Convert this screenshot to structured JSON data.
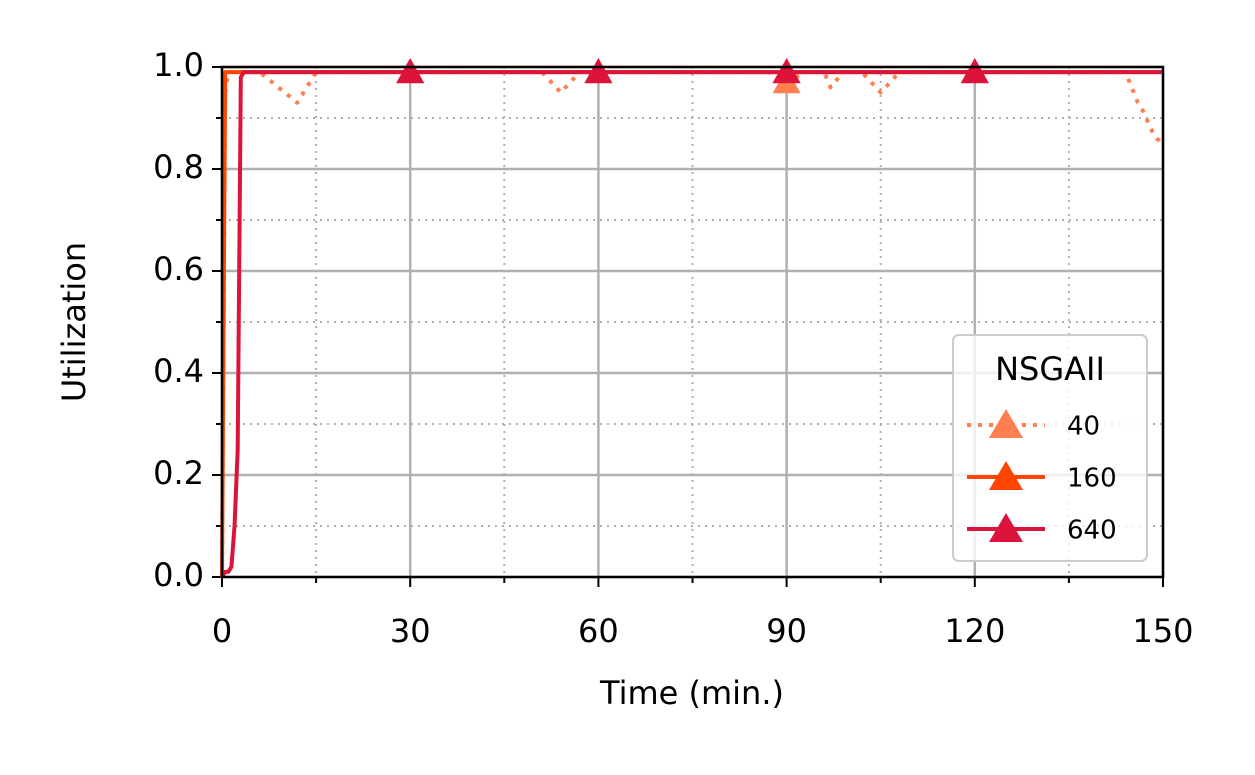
{
  "chart_data": {
    "type": "line",
    "xlabel": "Time (min.)",
    "ylabel": "Utilization",
    "legend_title": "NSGAII",
    "legend": "lower right",
    "xlim": [
      0,
      150
    ],
    "xticks": [
      0,
      30,
      60,
      90,
      120,
      150
    ],
    "xminorticks": [
      15,
      45,
      75,
      105,
      135
    ],
    "ylim": [
      0,
      1
    ],
    "yticks": [
      {
        "value": 0,
        "label": "0.0"
      },
      0.2,
      0.4,
      0.6,
      0.8,
      {
        "value": 1,
        "label": "1.0"
      }
    ],
    "yminorticks": [
      0.1,
      0.3,
      0.5,
      0.7,
      0.9
    ],
    "grid": true,
    "markers_x": [
      30,
      60,
      90,
      120
    ],
    "x": [
      0,
      0.5,
      1,
      1.5,
      2,
      2.5,
      3,
      3.5,
      4,
      6,
      9,
      12,
      13,
      15,
      18,
      21,
      24,
      27,
      30,
      33,
      36,
      39,
      42,
      45,
      48,
      51,
      54,
      57,
      60,
      63,
      66,
      69,
      72,
      75,
      78,
      81,
      84,
      87,
      90,
      93,
      96,
      97,
      99,
      102,
      105,
      108,
      111,
      114,
      117,
      120,
      123,
      126,
      129,
      132,
      135,
      138,
      141,
      144,
      145,
      146,
      147,
      148,
      149,
      150
    ],
    "series": [
      {
        "name": "40",
        "color": "#ff7f50",
        "linestyle": "dotted",
        "values": [
          0,
          0.95,
          0.99,
          0.99,
          0.99,
          0.99,
          0.99,
          0.99,
          0.99,
          0.99,
          0.96,
          0.93,
          0.95,
          0.99,
          0.99,
          0.99,
          0.99,
          0.99,
          0.99,
          0.99,
          0.99,
          0.99,
          0.99,
          0.99,
          0.99,
          0.99,
          0.95,
          0.99,
          0.99,
          0.99,
          0.99,
          0.99,
          0.99,
          0.99,
          0.99,
          0.99,
          0.99,
          0.99,
          0.97,
          0.99,
          0.99,
          0.96,
          0.99,
          0.99,
          0.95,
          0.99,
          0.99,
          0.99,
          0.99,
          0.99,
          0.99,
          0.99,
          0.99,
          0.99,
          0.99,
          0.99,
          0.99,
          0.99,
          0.96,
          0.93,
          0.91,
          0.88,
          0.86,
          0.85
        ]
      },
      {
        "name": "160",
        "color": "#ff4500",
        "linestyle": "solid",
        "values": [
          0,
          0.99,
          0.99,
          0.99,
          0.99,
          0.99,
          0.99,
          0.99,
          0.99,
          0.99,
          0.99,
          0.99,
          0.99,
          0.99,
          0.99,
          0.99,
          0.99,
          0.99,
          0.99,
          0.99,
          0.99,
          0.99,
          0.99,
          0.99,
          0.99,
          0.99,
          0.99,
          0.99,
          0.99,
          0.99,
          0.99,
          0.99,
          0.99,
          0.99,
          0.99,
          0.99,
          0.99,
          0.99,
          0.99,
          0.99,
          0.99,
          0.99,
          0.99,
          0.99,
          0.99,
          0.99,
          0.99,
          0.99,
          0.99,
          0.99,
          0.99,
          0.99,
          0.99,
          0.99,
          0.99,
          0.99,
          0.99,
          0.99,
          0.99,
          0.99,
          0.99,
          0.99,
          0.99,
          0.99
        ]
      },
      {
        "name": "640",
        "color": "#dc143c",
        "linestyle": "solid",
        "values": [
          0,
          0.01,
          0.01,
          0.02,
          0.1,
          0.25,
          0.98,
          0.99,
          0.99,
          0.99,
          0.99,
          0.99,
          0.99,
          0.99,
          0.99,
          0.99,
          0.99,
          0.99,
          0.99,
          0.99,
          0.99,
          0.99,
          0.99,
          0.99,
          0.99,
          0.99,
          0.99,
          0.99,
          0.99,
          0.99,
          0.99,
          0.99,
          0.99,
          0.99,
          0.99,
          0.99,
          0.99,
          0.99,
          0.99,
          0.99,
          0.99,
          0.99,
          0.99,
          0.99,
          0.99,
          0.99,
          0.99,
          0.99,
          0.99,
          0.99,
          0.99,
          0.99,
          0.99,
          0.99,
          0.99,
          0.99,
          0.99,
          0.99,
          0.99,
          0.99,
          0.99,
          0.99,
          0.99,
          0.99
        ]
      }
    ]
  }
}
